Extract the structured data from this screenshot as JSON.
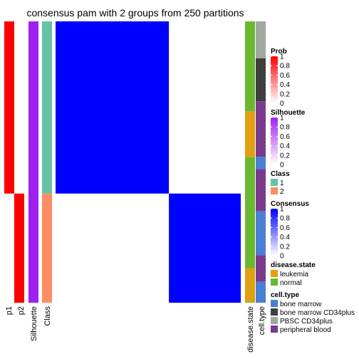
{
  "chart_data": {
    "type": "heatmap",
    "title": "consensus pam with 2 groups from 250 partitions",
    "n_samples": 250,
    "group_sizes": [
      153,
      97
    ],
    "colors": {
      "prob": "#ff0000",
      "silhouette": "#a020f0",
      "class_1": "#66c2a5",
      "class_2": "#fc8d62",
      "consensus": "#0000ff",
      "leukemia": "#e0a010",
      "normal": "#6ab830",
      "bone_marrow": "#4a7fd4",
      "bone_marrow_cd34plus": "#3f3f3f",
      "pbsc_cd34plus": "#a0a8a0",
      "peripheral_blood": "#7a3a8c"
    },
    "row_annotations": [
      {
        "label": "p1",
        "kind": "p1"
      },
      {
        "label": "p2",
        "kind": "p2"
      },
      {
        "label": "Silhouette",
        "kind": "silhouette"
      },
      {
        "label": "Class",
        "kind": "class"
      }
    ],
    "column_annotations": [
      {
        "label": "disease.state",
        "segments": [
          {
            "fraction": 0.397,
            "level": "normal"
          },
          {
            "fraction": 0.202,
            "level": "leukemia"
          },
          {
            "fraction": 0.49,
            "level": "normal"
          },
          {
            "fraction": 0.15,
            "level": "leukemia"
          },
          {
            "fraction": 0.002,
            "level": "normal"
          }
        ]
      },
      {
        "label": "cell.type",
        "segments": [
          {
            "fraction": 0.21,
            "level": "pbsc_cd34plus"
          },
          {
            "fraction": 0.245,
            "level": "bone_marrow_cd34plus"
          },
          {
            "fraction": 0.315,
            "level": "peripheral_blood"
          },
          {
            "fraction": 0.07,
            "level": "bone_marrow"
          },
          {
            "fraction": 0.24,
            "level": "peripheral_blood"
          },
          {
            "fraction": 0.25,
            "level": "bone_marrow"
          },
          {
            "fraction": 0.15,
            "level": "peripheral_blood"
          },
          {
            "fraction": 0.12,
            "level": "bone_marrow"
          }
        ]
      }
    ],
    "legends": [
      {
        "title": "Prob",
        "type": "gradient",
        "color": "#ff0000",
        "ticks": [
          "1",
          "0.8",
          "0.6",
          "0.4",
          "0.2",
          "0"
        ]
      },
      {
        "title": "Silhouette",
        "type": "gradient",
        "color": "#a020f0",
        "ticks": [
          "1",
          "0.8",
          "0.6",
          "0.4",
          "0.2",
          "0"
        ]
      },
      {
        "title": "Class",
        "type": "discrete",
        "items": [
          {
            "label": "1",
            "color": "#66c2a5"
          },
          {
            "label": "2",
            "color": "#fc8d62"
          }
        ]
      },
      {
        "title": "Consensus",
        "type": "gradient",
        "color": "#0000ff",
        "ticks": [
          "1",
          "0.8",
          "0.6",
          "0.4",
          "0.2",
          "0"
        ]
      },
      {
        "title": "disease.state",
        "type": "discrete",
        "items": [
          {
            "label": "leukemia",
            "color": "#e0a010"
          },
          {
            "label": "normal",
            "color": "#6ab830"
          }
        ]
      },
      {
        "title": "cell.type",
        "type": "discrete",
        "items": [
          {
            "label": "bone marrow",
            "color": "#4a7fd4"
          },
          {
            "label": "bone marrow CD34plus",
            "color": "#3f3f3f"
          },
          {
            "label": "PBSC CD34plus",
            "color": "#a0a8a0"
          },
          {
            "label": "peripheral blood",
            "color": "#7a3a8c"
          }
        ]
      }
    ]
  }
}
